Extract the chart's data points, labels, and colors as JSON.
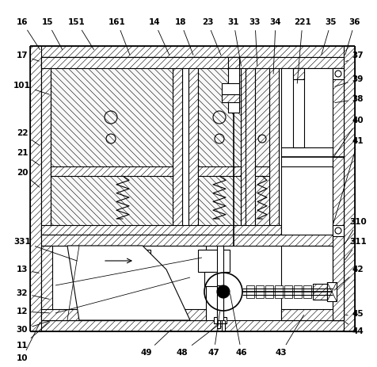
{
  "bg_color": "#ffffff",
  "line_color": "#000000",
  "fig_w": 4.77,
  "fig_h": 4.63,
  "dpi": 100,
  "lw": 0.8,
  "lw2": 1.2,
  "hatch_lw": 0.4
}
